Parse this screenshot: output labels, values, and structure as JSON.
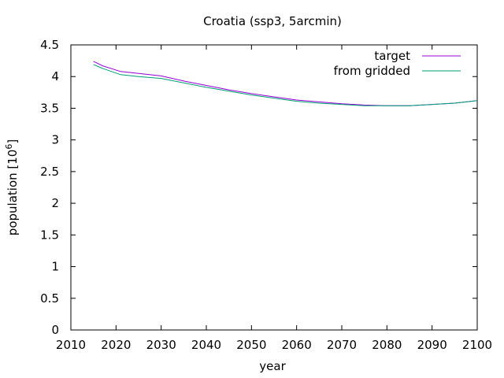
{
  "chart_data": {
    "type": "line",
    "title": "Croatia (ssp3, 5arcmin)",
    "xlabel": "year",
    "ylabel_main": "population [10",
    "ylabel_sup": "6",
    "ylabel_close": "]",
    "xlim": [
      2010,
      2100
    ],
    "ylim": [
      0,
      4.5
    ],
    "xticks": [
      2010,
      2020,
      2030,
      2040,
      2050,
      2060,
      2070,
      2080,
      2090,
      2100
    ],
    "yticks": [
      0,
      0.5,
      1,
      1.5,
      2,
      2.5,
      3,
      3.5,
      4,
      4.5
    ],
    "xtick_labels": [
      "2010",
      "2020",
      "2030",
      "2040",
      "2050",
      "2060",
      "2070",
      "2080",
      "2090",
      "2100"
    ],
    "ytick_labels": [
      "0",
      "0.5",
      "1",
      "1.5",
      "2",
      "2.5",
      "3",
      "3.5",
      "4",
      "4.5"
    ],
    "grid": false,
    "legend_position": "top-right",
    "series": [
      {
        "name": "target",
        "color": "#9400d3",
        "x": [
          2015,
          2017,
          2021,
          2025,
          2030,
          2035,
          2040,
          2045,
          2050,
          2055,
          2060,
          2065,
          2070,
          2075,
          2080,
          2085,
          2090,
          2095,
          2100
        ],
        "y": [
          4.24,
          4.17,
          4.08,
          4.05,
          4.01,
          3.93,
          3.86,
          3.79,
          3.73,
          3.68,
          3.63,
          3.6,
          3.57,
          3.55,
          3.54,
          3.54,
          3.56,
          3.58,
          3.62
        ]
      },
      {
        "name": "from gridded",
        "color": "#009e73",
        "x": [
          2015,
          2017,
          2021,
          2025,
          2030,
          2035,
          2040,
          2045,
          2050,
          2055,
          2060,
          2065,
          2070,
          2075,
          2080,
          2085,
          2090,
          2095,
          2100
        ],
        "y": [
          4.19,
          4.13,
          4.03,
          4.0,
          3.97,
          3.9,
          3.83,
          3.77,
          3.71,
          3.66,
          3.61,
          3.58,
          3.56,
          3.54,
          3.54,
          3.54,
          3.56,
          3.58,
          3.62
        ]
      }
    ]
  }
}
